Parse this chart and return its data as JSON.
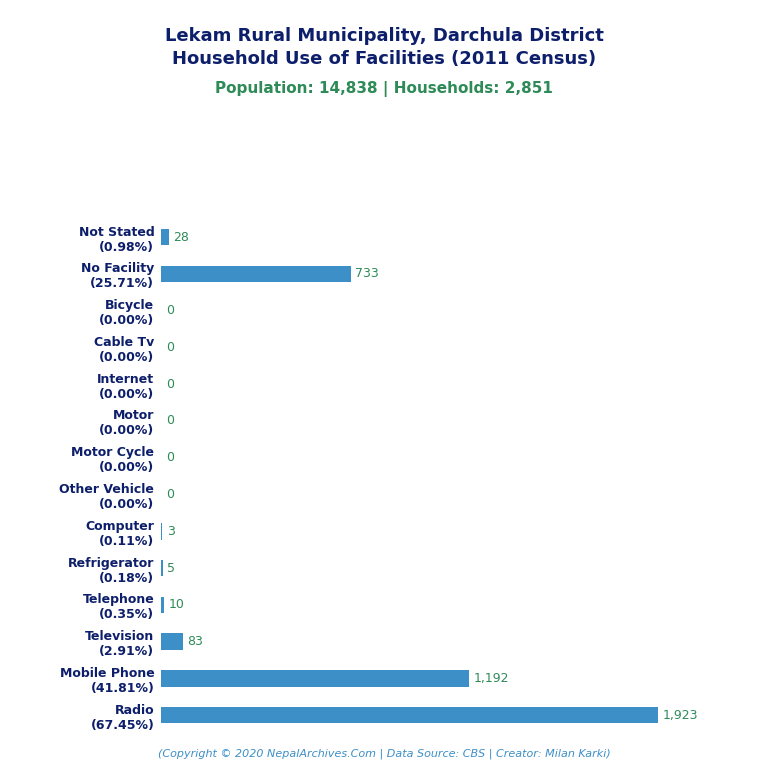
{
  "title_line1": "Lekam Rural Municipality, Darchula District",
  "title_line2": "Household Use of Facilities (2011 Census)",
  "subtitle": "Population: 14,838 | Households: 2,851",
  "footer": "(Copyright © 2020 NepalArchives.Com | Data Source: CBS | Creator: Milan Karki)",
  "categories": [
    "Radio\n(67.45%)",
    "Mobile Phone\n(41.81%)",
    "Television\n(2.91%)",
    "Telephone\n(0.35%)",
    "Refrigerator\n(0.18%)",
    "Computer\n(0.11%)",
    "Other Vehicle\n(0.00%)",
    "Motor Cycle\n(0.00%)",
    "Motor\n(0.00%)",
    "Internet\n(0.00%)",
    "Cable Tv\n(0.00%)",
    "Bicycle\n(0.00%)",
    "No Facility\n(25.71%)",
    "Not Stated\n(0.98%)"
  ],
  "values": [
    1923,
    1192,
    83,
    10,
    5,
    3,
    0,
    0,
    0,
    0,
    0,
    0,
    733,
    28
  ],
  "bar_color": "#3d8fc7",
  "value_color": "#2e8b57",
  "title_color": "#0d1f6b",
  "subtitle_color": "#2e8b57",
  "footer_color": "#3d8fc7",
  "label_color": "#0d1f6b",
  "background_color": "#ffffff",
  "xlim": [
    0,
    2200
  ],
  "bar_height": 0.45
}
